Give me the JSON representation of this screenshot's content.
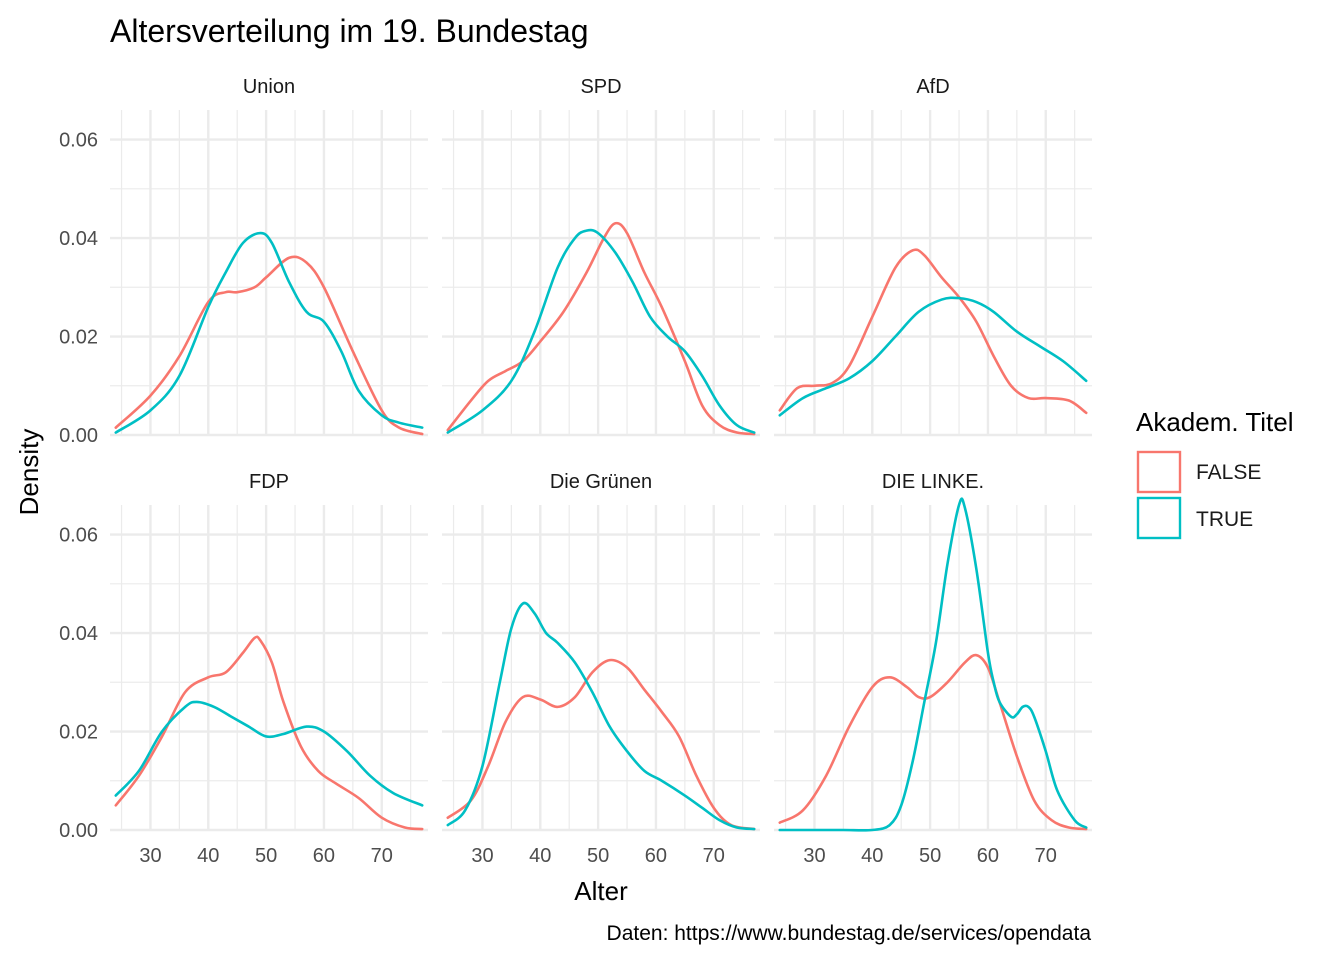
{
  "chart_data": {
    "type": "line",
    "title": "Altersverteilung im 19. Bundestag",
    "xlabel": "Alter",
    "ylabel": "Density",
    "caption": "Daten: https://www.bundestag.de/services/opendata",
    "xlim": [
      23,
      78
    ],
    "ylim": [
      0,
      0.066
    ],
    "x_ticks": [
      30,
      40,
      50,
      60,
      70
    ],
    "y_ticks": [
      0.0,
      0.02,
      0.04,
      0.06
    ],
    "y_tick_labels": [
      "0.00",
      "0.02",
      "0.04",
      "0.06"
    ],
    "grid": true,
    "legend": {
      "title": "Akadem. Titel",
      "position": "right",
      "entries": [
        {
          "label": "FALSE",
          "color": "#F8766D"
        },
        {
          "label": "TRUE",
          "color": "#00BFC4"
        }
      ]
    },
    "panels": [
      {
        "name": "Union",
        "series": [
          {
            "name": "FALSE",
            "color": "#F8766D",
            "x": [
              24,
              30,
              35,
              40,
              43,
              45,
              48,
              50,
              54,
              57,
              60,
              65,
              70,
              73,
              77
            ],
            "y": [
              0.0015,
              0.008,
              0.016,
              0.027,
              0.029,
              0.029,
              0.03,
              0.032,
              0.036,
              0.035,
              0.03,
              0.017,
              0.005,
              0.0015,
              0.0002
            ]
          },
          {
            "name": "TRUE",
            "color": "#00BFC4",
            "x": [
              24,
              30,
              35,
              40,
              43,
              46,
              49,
              51,
              54,
              57,
              60,
              63,
              66,
              70,
              73,
              77
            ],
            "y": [
              0.0005,
              0.005,
              0.012,
              0.026,
              0.033,
              0.039,
              0.041,
              0.039,
              0.031,
              0.025,
              0.023,
              0.017,
              0.009,
              0.004,
              0.0025,
              0.0015
            ]
          }
        ]
      },
      {
        "name": "SPD",
        "series": [
          {
            "name": "FALSE",
            "color": "#F8766D",
            "x": [
              24,
              28,
              31,
              34,
              37,
              40,
              44,
              48,
              51,
              53,
              55,
              58,
              61,
              65,
              68,
              71,
              74,
              77
            ],
            "y": [
              0.001,
              0.007,
              0.011,
              0.013,
              0.015,
              0.019,
              0.025,
              0.033,
              0.04,
              0.043,
              0.041,
              0.033,
              0.026,
              0.015,
              0.006,
              0.002,
              0.0005,
              0.0002
            ]
          },
          {
            "name": "TRUE",
            "color": "#00BFC4",
            "x": [
              24,
              30,
              35,
              39,
              43,
              46,
              48,
              50,
              53,
              56,
              59,
              62,
              65,
              68,
              71,
              74,
              77
            ],
            "y": [
              0.0005,
              0.005,
              0.011,
              0.021,
              0.034,
              0.04,
              0.0415,
              0.041,
              0.037,
              0.031,
              0.024,
              0.02,
              0.017,
              0.012,
              0.006,
              0.002,
              0.0005
            ]
          }
        ]
      },
      {
        "name": "AfD",
        "series": [
          {
            "name": "FALSE",
            "color": "#F8766D",
            "x": [
              24,
              27,
              30,
              33,
              36,
              40,
              44,
              47,
              49,
              52,
              55,
              58,
              61,
              64,
              67,
              70,
              74,
              77
            ],
            "y": [
              0.005,
              0.0095,
              0.01,
              0.0105,
              0.014,
              0.024,
              0.034,
              0.0375,
              0.0365,
              0.032,
              0.028,
              0.023,
              0.016,
              0.01,
              0.0075,
              0.0075,
              0.007,
              0.0045
            ]
          },
          {
            "name": "TRUE",
            "color": "#00BFC4",
            "x": [
              24,
              28,
              32,
              36,
              40,
              44,
              48,
              52,
              55,
              58,
              61,
              65,
              69,
              73,
              77
            ],
            "y": [
              0.004,
              0.0075,
              0.0095,
              0.0115,
              0.015,
              0.02,
              0.025,
              0.0275,
              0.0278,
              0.027,
              0.025,
              0.021,
              0.018,
              0.015,
              0.011
            ]
          }
        ]
      },
      {
        "name": "FDP",
        "series": [
          {
            "name": "FALSE",
            "color": "#F8766D",
            "x": [
              24,
              28,
              32,
              36,
              40,
              43,
              46,
              48,
              49,
              51,
              53,
              56,
              59,
              62,
              66,
              70,
              74,
              77
            ],
            "y": [
              0.005,
              0.011,
              0.019,
              0.028,
              0.031,
              0.032,
              0.036,
              0.039,
              0.0385,
              0.034,
              0.026,
              0.017,
              0.012,
              0.0095,
              0.0065,
              0.0025,
              0.0005,
              0.0002
            ]
          },
          {
            "name": "TRUE",
            "color": "#00BFC4",
            "x": [
              24,
              28,
              32,
              36,
              38,
              41,
              44,
              47,
              50,
              53,
              57,
              60,
              64,
              68,
              72,
              77
            ],
            "y": [
              0.007,
              0.012,
              0.02,
              0.025,
              0.026,
              0.025,
              0.023,
              0.021,
              0.019,
              0.0195,
              0.021,
              0.02,
              0.016,
              0.011,
              0.0075,
              0.005
            ]
          }
        ]
      },
      {
        "name": "Die Grünen",
        "series": [
          {
            "name": "FALSE",
            "color": "#F8766D",
            "x": [
              24,
              28,
              31,
              34,
              37,
              40,
              43,
              46,
              49,
              52,
              55,
              58,
              61,
              64,
              67,
              70,
              73,
              77
            ],
            "y": [
              0.0025,
              0.006,
              0.013,
              0.022,
              0.027,
              0.0265,
              0.025,
              0.027,
              0.032,
              0.0345,
              0.033,
              0.0285,
              0.024,
              0.019,
              0.011,
              0.0045,
              0.001,
              0.0002
            ]
          },
          {
            "name": "TRUE",
            "color": "#00BFC4",
            "x": [
              24,
              27,
              30,
              33,
              35,
              37,
              39,
              41,
              43,
              46,
              49,
              52,
              55,
              58,
              61,
              65,
              68,
              71,
              74,
              77
            ],
            "y": [
              0.001,
              0.004,
              0.013,
              0.03,
              0.041,
              0.046,
              0.044,
              0.04,
              0.038,
              0.034,
              0.028,
              0.021,
              0.016,
              0.012,
              0.01,
              0.007,
              0.0045,
              0.002,
              0.0005,
              0.0002
            ]
          }
        ]
      },
      {
        "name": "DIE LINKE.",
        "series": [
          {
            "name": "FALSE",
            "color": "#F8766D",
            "x": [
              24,
              28,
              32,
              36,
              40,
              43,
              46,
              48,
              50,
              53,
              56,
              58,
              60,
              62,
              65,
              68,
              71,
              74,
              77
            ],
            "y": [
              0.0015,
              0.004,
              0.011,
              0.021,
              0.029,
              0.031,
              0.029,
              0.027,
              0.027,
              0.03,
              0.034,
              0.0355,
              0.033,
              0.026,
              0.015,
              0.006,
              0.002,
              0.0005,
              0.0002
            ]
          },
          {
            "name": "TRUE",
            "color": "#00BFC4",
            "x": [
              24,
              30,
              35,
              40,
              43,
              45,
              47,
              49,
              51,
              53,
              55,
              56,
              58,
              60,
              61,
              62,
              64,
              65,
              66,
              67,
              68,
              70,
              72,
              75,
              77
            ],
            "y": [
              0,
              0,
              0,
              0,
              0.001,
              0.005,
              0.014,
              0.026,
              0.038,
              0.054,
              0.066,
              0.0655,
              0.053,
              0.036,
              0.03,
              0.026,
              0.023,
              0.0235,
              0.025,
              0.025,
              0.023,
              0.016,
              0.008,
              0.002,
              0.0005
            ]
          }
        ]
      }
    ]
  }
}
